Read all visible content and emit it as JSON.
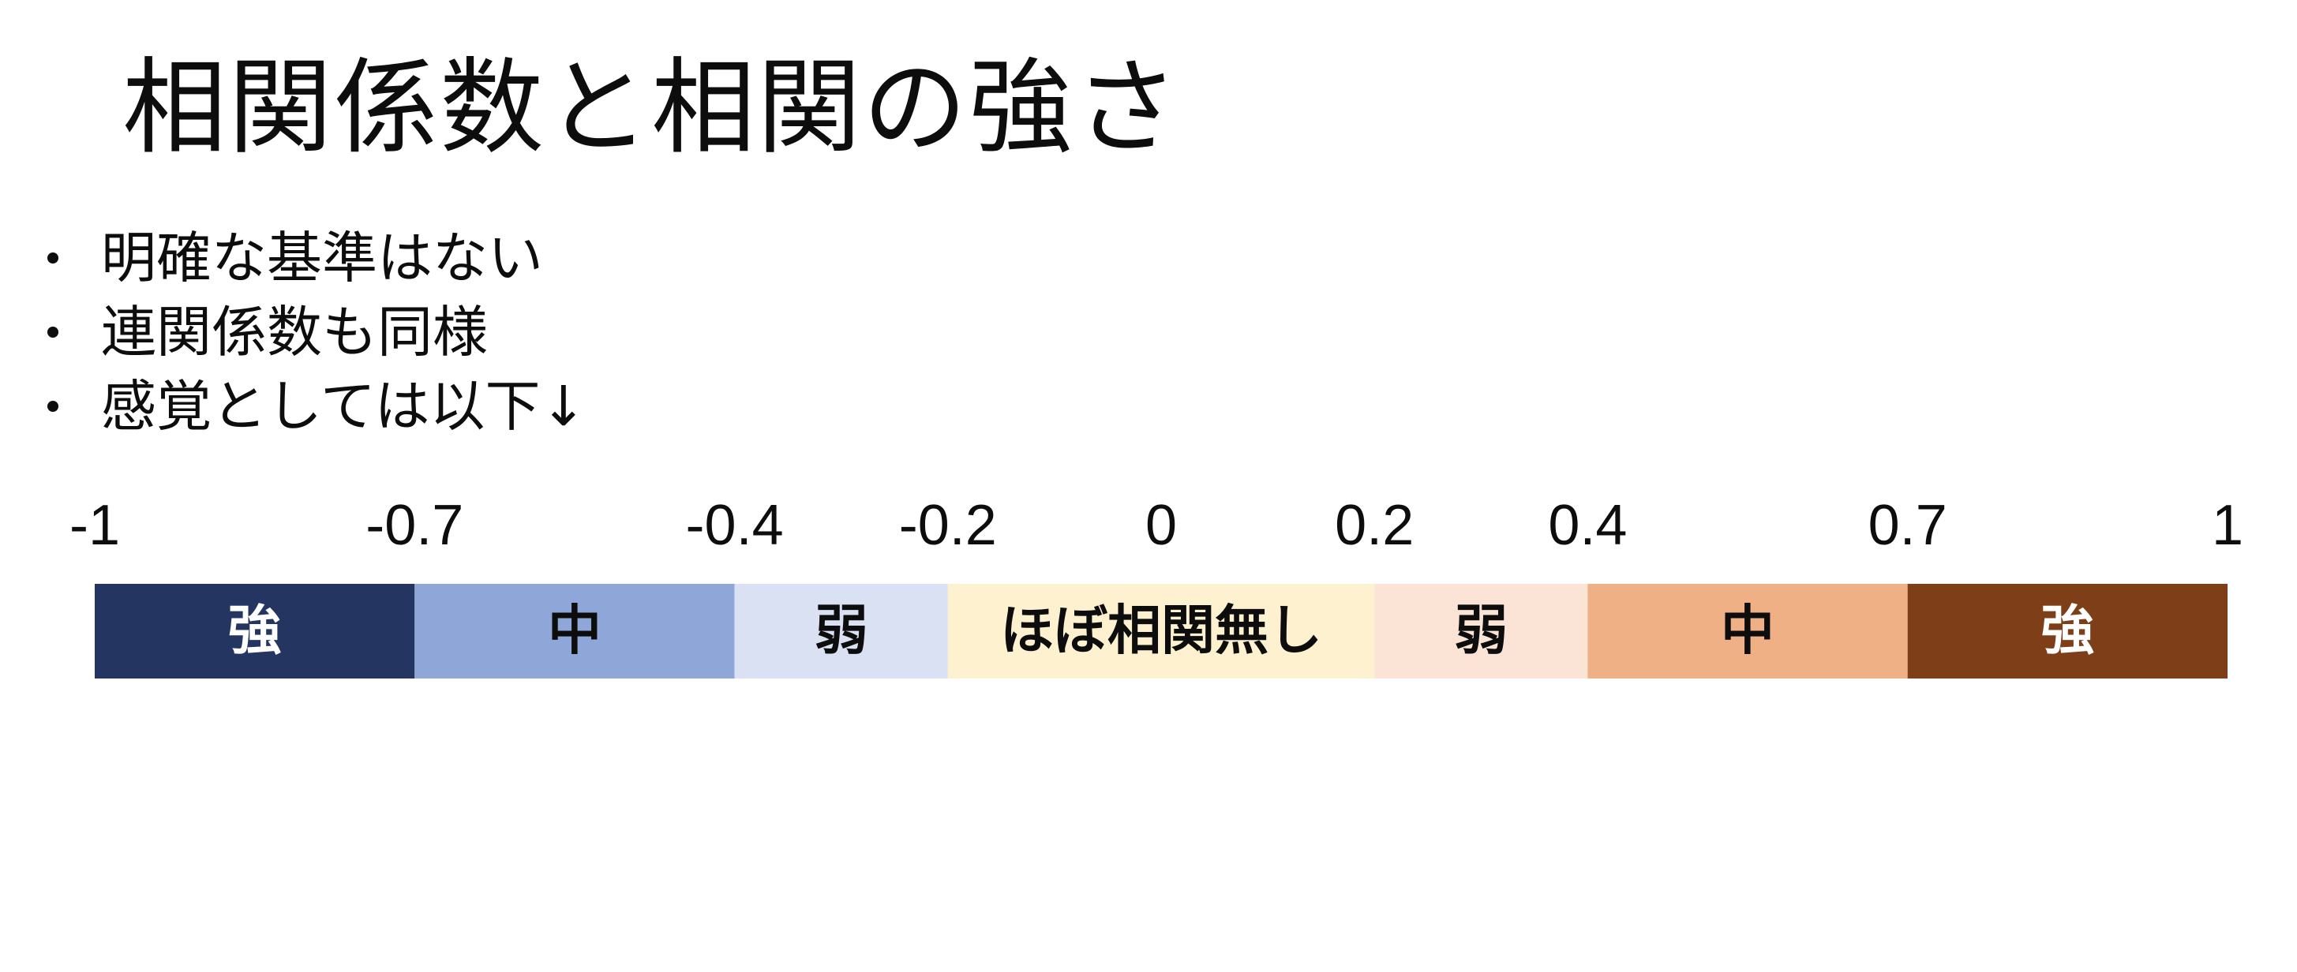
{
  "title": "相関係数と相関の強さ",
  "bullets": [
    "明確な基準はない",
    "連関係数も同様",
    "感覚としては以下↓"
  ],
  "scale": {
    "min": -1,
    "max": 1,
    "ticks": [
      {
        "value": -1,
        "label": "-1"
      },
      {
        "value": -0.7,
        "label": "-0.7"
      },
      {
        "value": -0.4,
        "label": "-0.4"
      },
      {
        "value": -0.2,
        "label": "-0.2"
      },
      {
        "value": 0,
        "label": "0"
      },
      {
        "value": 0.2,
        "label": "0.2"
      },
      {
        "value": 0.4,
        "label": "0.4"
      },
      {
        "value": 0.7,
        "label": "0.7"
      },
      {
        "value": 1,
        "label": "1"
      }
    ],
    "segments": [
      {
        "from": -1,
        "to": -0.7,
        "label": "強",
        "color": "#233560",
        "text_color": "#ffffff"
      },
      {
        "from": -0.7,
        "to": -0.4,
        "label": "中",
        "color": "#8ea7d8",
        "text_color": "#0d0d0d"
      },
      {
        "from": -0.4,
        "to": -0.2,
        "label": "弱",
        "color": "#d9e1f2",
        "text_color": "#0d0d0d"
      },
      {
        "from": -0.2,
        "to": 0.2,
        "label": "ほぼ相関無し",
        "color": "#fdf1d0",
        "text_color": "#0d0d0d"
      },
      {
        "from": 0.2,
        "to": 0.4,
        "label": "弱",
        "color": "#fbe4d6",
        "text_color": "#0d0d0d"
      },
      {
        "from": 0.4,
        "to": 0.7,
        "label": "中",
        "color": "#f0b086",
        "text_color": "#0d0d0d"
      },
      {
        "from": 0.7,
        "to": 1,
        "label": "強",
        "color": "#7e3e17",
        "text_color": "#ffffff"
      }
    ]
  }
}
